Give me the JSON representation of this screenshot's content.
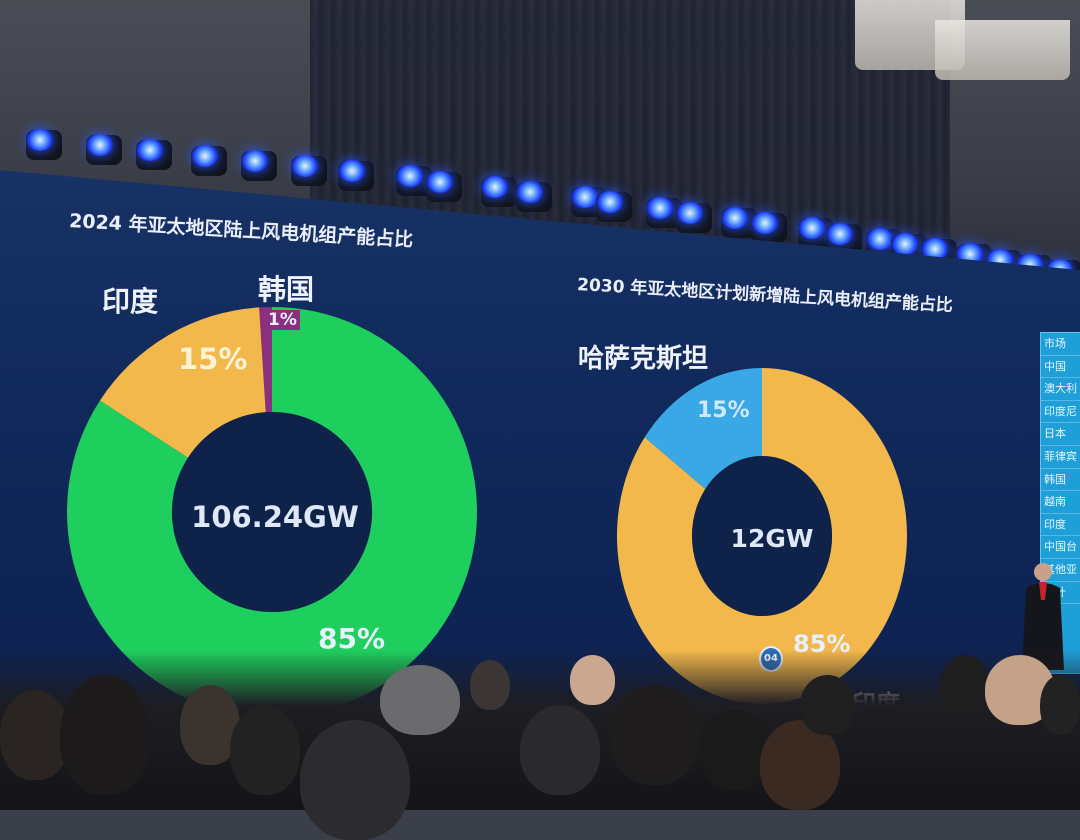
{
  "chart_data": [
    {
      "type": "pie",
      "title": "2024 年亚太地区陆上风电机组产能占比",
      "center_label": "106.24GW",
      "slices": [
        {
          "name": "印度",
          "value": 15,
          "label": "15%",
          "color": "#f2b84b"
        },
        {
          "name": "韩国",
          "value": 1,
          "label": "1%",
          "color": "#8b2f7e"
        },
        {
          "name": "",
          "value": 85,
          "label": "85%",
          "color": "#1fcf5e"
        }
      ]
    },
    {
      "type": "pie",
      "title": "2030 年亚太地区计划新增陆上风电机组产能占比",
      "center_label": "12GW",
      "slices": [
        {
          "name": "哈萨克斯坦",
          "value": 15,
          "label": "15%",
          "color": "#3aa8e6"
        },
        {
          "name": "印度",
          "value": 85,
          "label": "85%",
          "color": "#f2b84b"
        }
      ]
    }
  ],
  "side_table": {
    "rows": [
      "市场",
      "中国",
      "澳大利",
      "印度尼",
      "日本",
      "菲律宾",
      "韩国",
      "越南",
      "印度",
      "中国台",
      "其他亚",
      "总计"
    ]
  },
  "badge": "04",
  "colors": {
    "screen_bg": "#10285a",
    "accent_light": "#2a56ff"
  }
}
